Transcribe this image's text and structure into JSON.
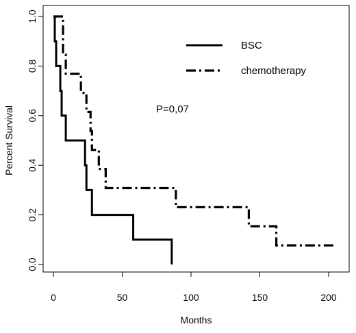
{
  "chart_data": {
    "type": "line",
    "subtype": "kaplan-meier step",
    "title": "",
    "xlabel": "Months",
    "ylabel": "Percent Survival",
    "xlim": [
      0,
      205
    ],
    "ylim": [
      0,
      1
    ],
    "x_ticks": [
      0,
      50,
      100,
      150,
      200
    ],
    "y_ticks": [
      0.0,
      0.2,
      0.4,
      0.6,
      0.8,
      1.0
    ],
    "x_tick_labels": [
      "0",
      "50",
      "100",
      "150",
      "200"
    ],
    "y_tick_labels": [
      "0.0",
      "0.2",
      "0.4",
      "0.6",
      "0.8",
      "1.0"
    ],
    "grid": false,
    "legend_position": "top-right",
    "annotation": "P=0,07",
    "series": [
      {
        "name": "BSC",
        "line_style": "solid",
        "color": "#000000",
        "steps": [
          [
            0,
            1.0
          ],
          [
            1,
            0.9
          ],
          [
            2,
            0.8
          ],
          [
            5,
            0.7
          ],
          [
            6,
            0.6
          ],
          [
            9,
            0.5
          ],
          [
            23,
            0.4
          ],
          [
            24,
            0.3
          ],
          [
            28,
            0.2
          ],
          [
            58,
            0.1
          ],
          [
            86,
            0.0
          ]
        ],
        "end_x": 86
      },
      {
        "name": "chemotherapy",
        "line_style": "dash-dot",
        "color": "#000000",
        "steps": [
          [
            0,
            1.0
          ],
          [
            7,
            0.846
          ],
          [
            9,
            0.769
          ],
          [
            20,
            0.692
          ],
          [
            24,
            0.615
          ],
          [
            27,
            0.538
          ],
          [
            28,
            0.462
          ],
          [
            33,
            0.385
          ],
          [
            38,
            0.308
          ],
          [
            89,
            0.231
          ],
          [
            142,
            0.154
          ],
          [
            162,
            0.077
          ]
        ],
        "end_x": 204
      }
    ]
  }
}
